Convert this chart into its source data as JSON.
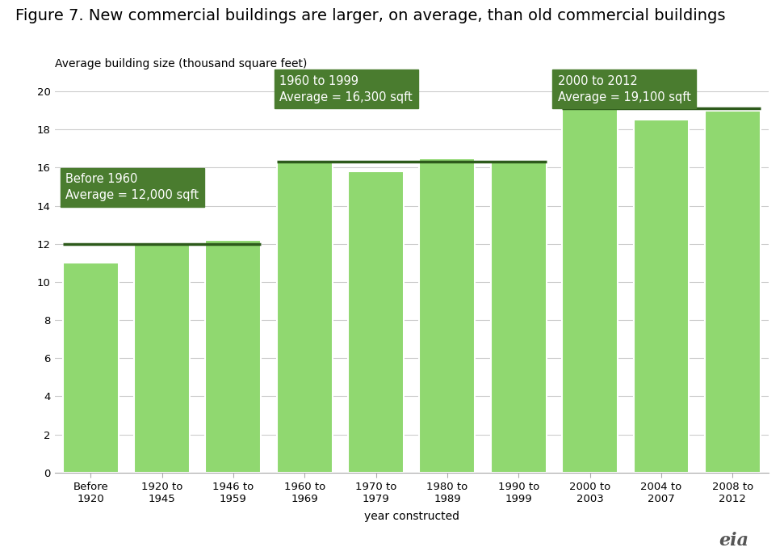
{
  "categories": [
    "Before\n1920",
    "1920 to\n1945",
    "1946 to\n1959",
    "1960 to\n1969",
    "1970 to\n1979",
    "1980 to\n1989",
    "1990 to\n1999",
    "2000 to\n2003",
    "2004 to\n2007",
    "2008 to\n2012"
  ],
  "values": [
    11.0,
    12.0,
    12.2,
    16.4,
    15.8,
    16.5,
    16.3,
    19.1,
    18.5,
    19.0
  ],
  "bar_color": "#90D870",
  "bar_edge_color": "white",
  "title": "Figure 7. New commercial buildings are larger, on average, than old commercial buildings",
  "ylabel": "Average building size (thousand square feet)",
  "xlabel": "year constructed",
  "ylim": [
    0,
    21
  ],
  "yticks": [
    0,
    2,
    4,
    6,
    8,
    10,
    12,
    14,
    16,
    18,
    20
  ],
  "group1_indices": [
    0,
    1,
    2
  ],
  "group1_avg": 12.0,
  "group1_label": "Before 1960\nAverage = 12,000 sqft",
  "group2_indices": [
    3,
    4,
    5,
    6
  ],
  "group2_avg": 16.3,
  "group2_label": "1960 to 1999\nAverage = 16,300 sqft",
  "group3_indices": [
    7,
    8,
    9
  ],
  "group3_avg": 19.1,
  "group3_label": "2000 to 2012\nAverage = 19,100 sqft",
  "annotation_bg_color": "#4a7c2f",
  "annotation_text_color": "#ffffff",
  "avg_line_color": "#2d5a1b",
  "grid_color": "#cccccc",
  "title_fontsize": 14,
  "axis_label_fontsize": 10,
  "tick_fontsize": 9.5,
  "annotation_fontsize": 10.5,
  "bar_width": 0.78
}
